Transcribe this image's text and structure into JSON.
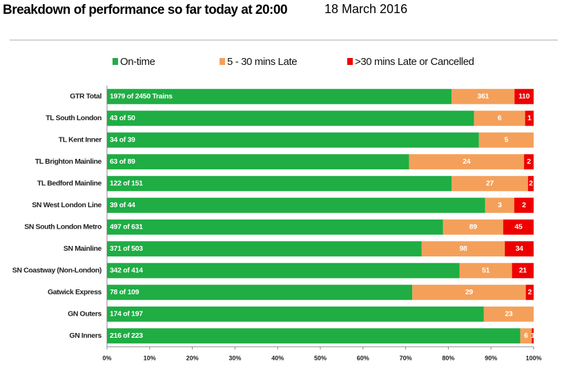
{
  "chart_data": {
    "type": "stacked-barh",
    "stacking": "percent",
    "title": "Breakdown of performance so far today at 20:00",
    "subtitle": "18 March 2016",
    "categories": [
      "GTR Total",
      "TL South London",
      "TL Kent Inner",
      "TL Brighton Mainline",
      "TL Bedford Mainline",
      "SN West London Line",
      "SN South London Metro",
      "SN Mainline",
      "SN Coastway (Non-London)",
      "Gatwick Express",
      "GN Outers",
      "GN Inners"
    ],
    "series": [
      {
        "name": "On-time",
        "color": "#1fad44",
        "values": [
          1979,
          43,
          34,
          63,
          122,
          39,
          497,
          371,
          342,
          78,
          174,
          216
        ],
        "value_labels": [
          "1979 of 2450 Trains",
          "43 of 50",
          "34 of 39",
          "63 of 89",
          "122 of 151",
          "39 of 44",
          "497 of 631",
          "371 of 503",
          "342 of 414",
          "78 of 109",
          "174 of 197",
          "216 of 223"
        ]
      },
      {
        "name": "5 - 30 mins Late",
        "color": "#f4a05a",
        "values": [
          361,
          6,
          5,
          24,
          27,
          3,
          89,
          98,
          51,
          29,
          23,
          6
        ]
      },
      {
        "name": ">30 mins Late or Cancelled",
        "color": "#ee0000",
        "values": [
          110,
          1,
          0,
          2,
          2,
          2,
          45,
          34,
          21,
          2,
          0,
          1
        ]
      }
    ],
    "xlim": [
      0,
      100
    ],
    "xticks": [
      {
        "value": 0,
        "label": "0%"
      },
      {
        "value": 10,
        "label": "10%"
      },
      {
        "value": 20,
        "label": "20%"
      },
      {
        "value": 30,
        "label": "30%"
      },
      {
        "value": 40,
        "label": "40%"
      },
      {
        "value": 50,
        "label": "50%"
      },
      {
        "value": 60,
        "label": "60%"
      },
      {
        "value": 70,
        "label": "70%"
      },
      {
        "value": 80,
        "label": "80%"
      },
      {
        "value": 90,
        "label": "90%"
      },
      {
        "value": 100,
        "label": "100%"
      }
    ],
    "legend": "top"
  }
}
